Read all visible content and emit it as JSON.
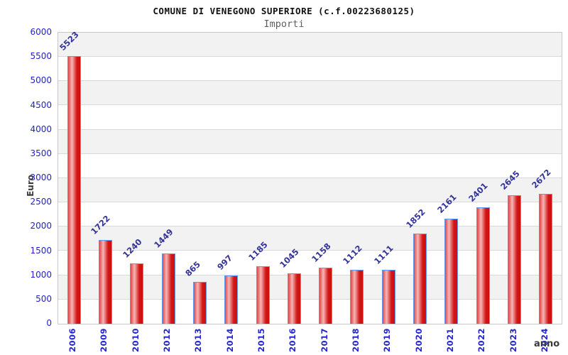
{
  "title": "COMUNE DI VENEGONO SUPERIORE (c.f.00223680125)",
  "subtitle": "Importi",
  "chart_data": {
    "type": "bar",
    "title": "Importi",
    "xlabel": "anno",
    "ylabel": "Euro",
    "categories": [
      "2006",
      "2009",
      "2010",
      "2012",
      "2013",
      "2014",
      "2015",
      "2016",
      "2017",
      "2018",
      "2019",
      "2020",
      "2021",
      "2022",
      "2023",
      "2024"
    ],
    "values": [
      5523,
      1722,
      1240,
      1449,
      865,
      997,
      1185,
      1045,
      1158,
      1112,
      1111,
      1852,
      2161,
      2401,
      2645,
      2672
    ],
    "ylim": [
      0,
      6000
    ],
    "ytick_step": 500,
    "yticks": [
      0,
      500,
      1000,
      1500,
      2000,
      2500,
      3000,
      3500,
      4000,
      4500,
      5000,
      5500,
      6000
    ],
    "grid": true,
    "legend": "none",
    "colors": {
      "axis_tick_text": "#2323cd",
      "value_label_text": "#333399",
      "bar_border": "#5b9bf5",
      "bar_gradient": [
        "#e04848",
        "#f6b6b6",
        "#d31515",
        "#cb0f0f"
      ],
      "band_gray": "#f2f2f2",
      "band_white": "#ffffff",
      "gridline": "#d9d9d9",
      "plot_border": "#c8c8c8",
      "title_text": "#111111",
      "subtitle_text": "#5e5e5e",
      "axis_title_text": "#3a3a3a"
    }
  }
}
